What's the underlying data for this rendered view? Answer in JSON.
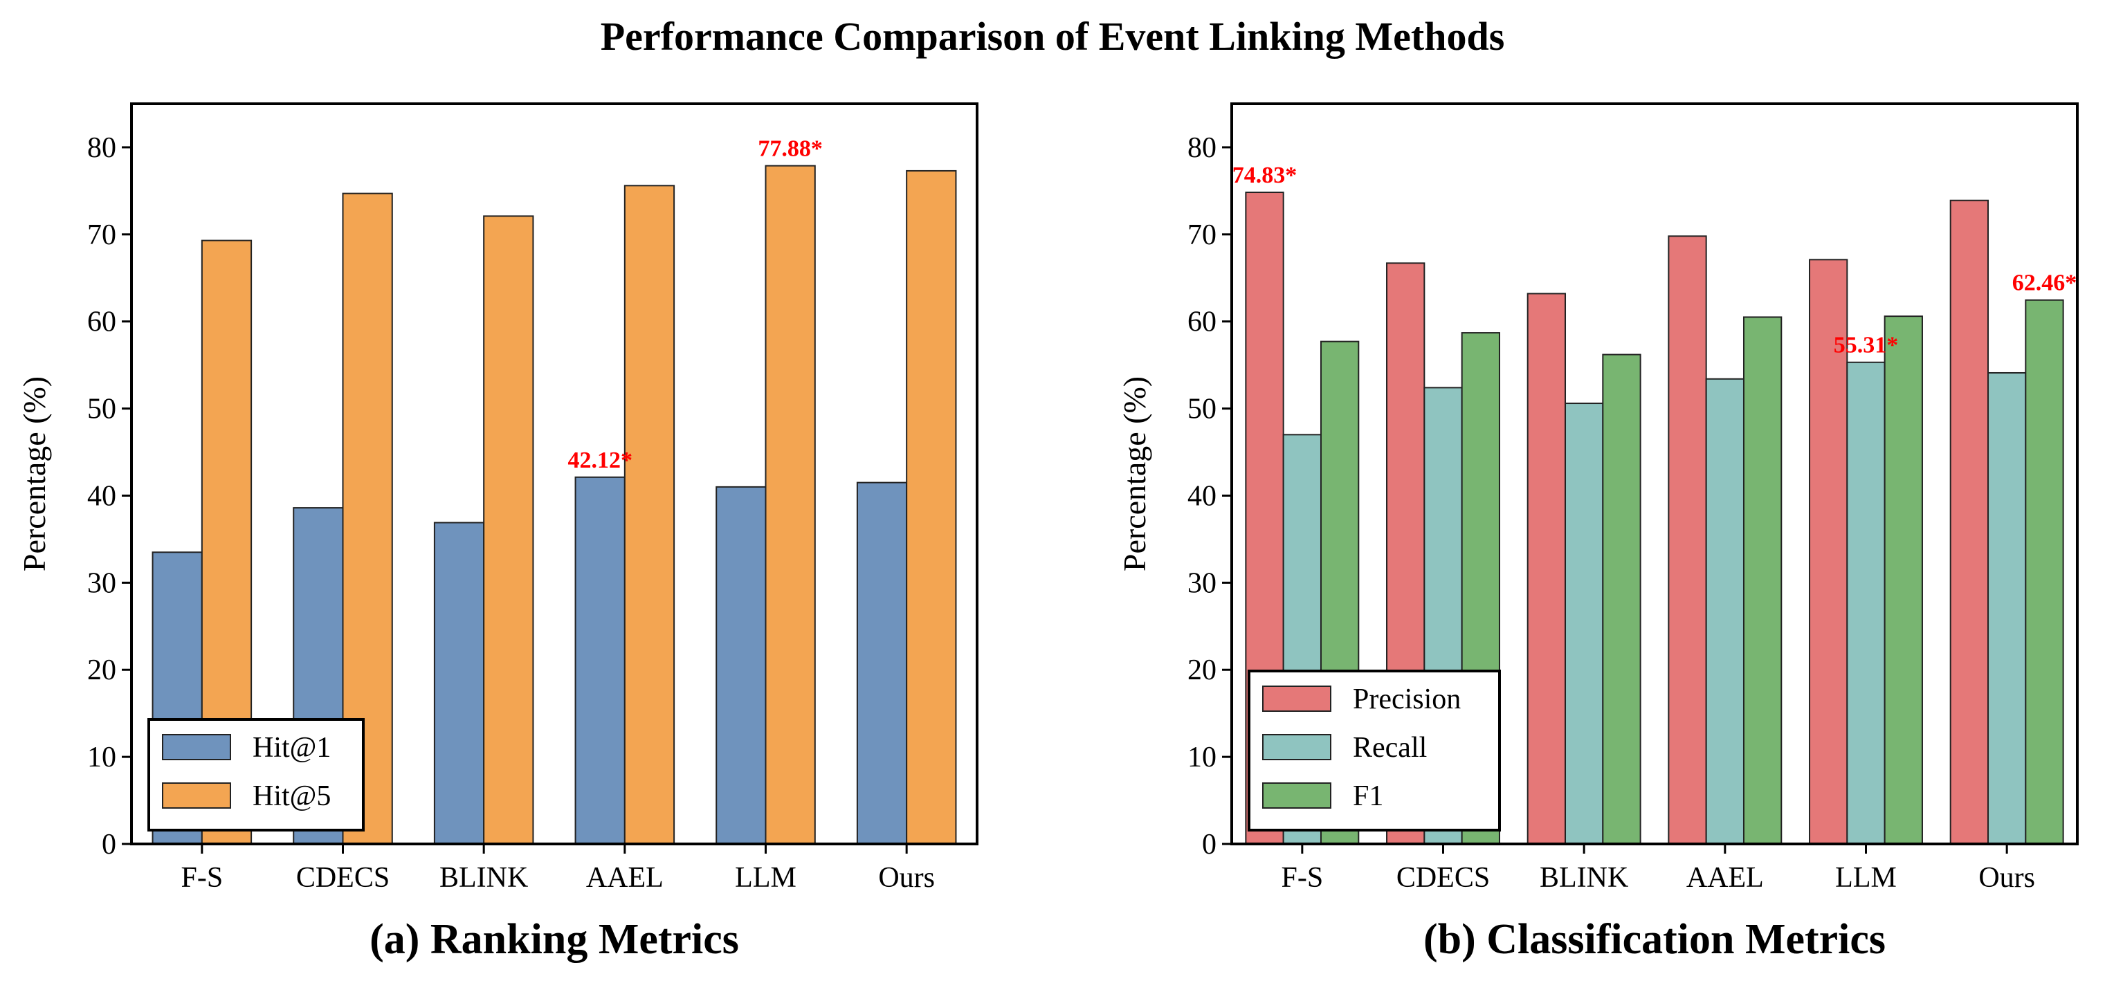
{
  "title": "Performance Comparison of Event Linking Methods",
  "colors": {
    "hit1": "#6f93bd",
    "hit5": "#f3a552",
    "precision": "#e57878",
    "recall": "#8fc4c0",
    "f1": "#78b571",
    "annotation": "#ff0000"
  },
  "chart_data": [
    {
      "type": "bar",
      "title": "(a) Ranking Metrics",
      "xlabel": "",
      "ylabel": "Percentage (%)",
      "ylim": [
        0,
        85
      ],
      "yticks": [
        "0",
        "10",
        "20",
        "30",
        "40",
        "50",
        "60",
        "70",
        "80"
      ],
      "categories": [
        "F-S",
        "CDECS",
        "BLINK",
        "AAEL",
        "LLM",
        "Ours"
      ],
      "series": [
        {
          "name": "Hit@1",
          "color_key": "hit1",
          "values": [
            33.5,
            38.6,
            36.9,
            42.12,
            41.0,
            41.5
          ]
        },
        {
          "name": "Hit@5",
          "color_key": "hit5",
          "values": [
            69.3,
            74.7,
            72.1,
            75.6,
            77.88,
            77.3
          ]
        }
      ],
      "annotations": [
        {
          "text": "42.12*",
          "series": 0,
          "category": 3
        },
        {
          "text": "77.88*",
          "series": 1,
          "category": 4
        }
      ],
      "legend": {
        "position": "lower-left"
      }
    },
    {
      "type": "bar",
      "title": "(b) Classification Metrics",
      "xlabel": "",
      "ylabel": "Percentage (%)",
      "ylim": [
        0,
        85
      ],
      "yticks": [
        "0",
        "10",
        "20",
        "30",
        "40",
        "50",
        "60",
        "70",
        "80"
      ],
      "categories": [
        "F-S",
        "CDECS",
        "BLINK",
        "AAEL",
        "LLM",
        "Ours"
      ],
      "series": [
        {
          "name": "Precision",
          "color_key": "precision",
          "values": [
            74.83,
            66.7,
            63.2,
            69.8,
            67.1,
            73.9
          ]
        },
        {
          "name": "Recall",
          "color_key": "recall",
          "values": [
            47.0,
            52.4,
            50.6,
            53.4,
            55.31,
            54.1
          ]
        },
        {
          "name": "F1",
          "color_key": "f1",
          "values": [
            57.7,
            58.7,
            56.2,
            60.5,
            60.6,
            62.46
          ]
        }
      ],
      "annotations": [
        {
          "text": "74.83*",
          "series": 0,
          "category": 0
        },
        {
          "text": "55.31*",
          "series": 1,
          "category": 4
        },
        {
          "text": "62.46*",
          "series": 2,
          "category": 5
        }
      ],
      "legend": {
        "position": "lower-left"
      }
    }
  ]
}
